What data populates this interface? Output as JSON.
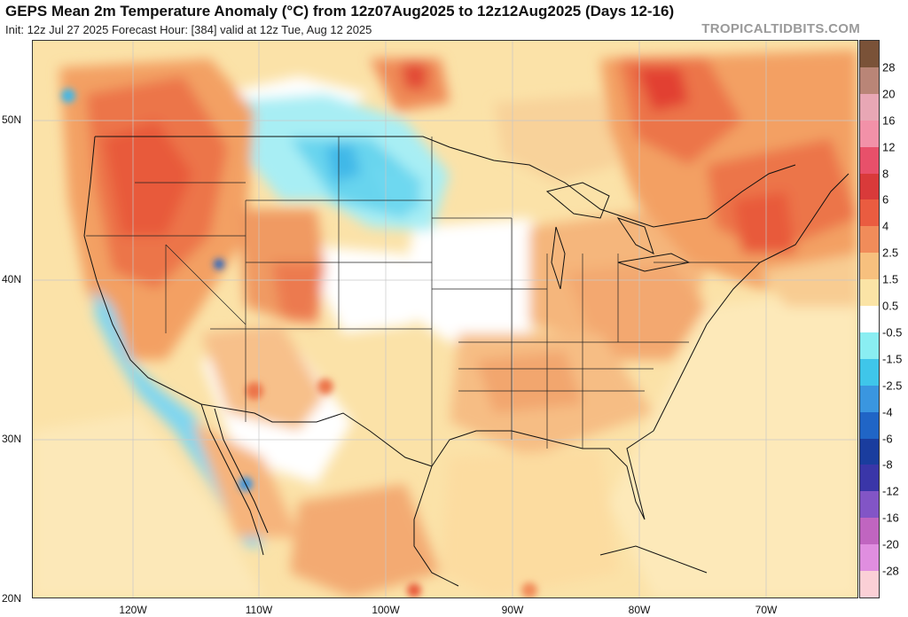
{
  "header": {
    "title": "GEPS Mean 2m Temperature Anomaly (°C) from 12z07Aug2025 to 12z12Aug2025 (Days 12-16)",
    "subtitle": "Init: 12z Jul 27 2025   Forecast Hour: [384]   valid at 12z Tue, Aug 12 2025",
    "credit": "TROPICALTIDBITS.COM"
  },
  "map": {
    "lat_labels": [
      "50N",
      "40N",
      "30N",
      "20N"
    ],
    "lon_labels": [
      "120W",
      "110W",
      "100W",
      "90W",
      "80W",
      "70W"
    ]
  },
  "colorbar": {
    "labels": [
      "28",
      "20",
      "16",
      "12",
      "8",
      "6",
      "4",
      "2.5",
      "1.5",
      "0.5",
      "-0.5",
      "-1.5",
      "-2.5",
      "-4",
      "-6",
      "-8",
      "-12",
      "-16",
      "-20",
      "-28"
    ],
    "colors": [
      "#7a5238",
      "#b98577",
      "#e8a7b5",
      "#f291a8",
      "#e8506a",
      "#d93a3a",
      "#ea5c40",
      "#f18c5a",
      "#f7c07e",
      "#fbe4a6",
      "#ffffff",
      "#8aeef2",
      "#3fc6ea",
      "#3a96e0",
      "#2065c6",
      "#1a3d9e",
      "#3a36a8",
      "#8255c6",
      "#c065c0",
      "#e08ee0",
      "#fbd0d6"
    ]
  }
}
